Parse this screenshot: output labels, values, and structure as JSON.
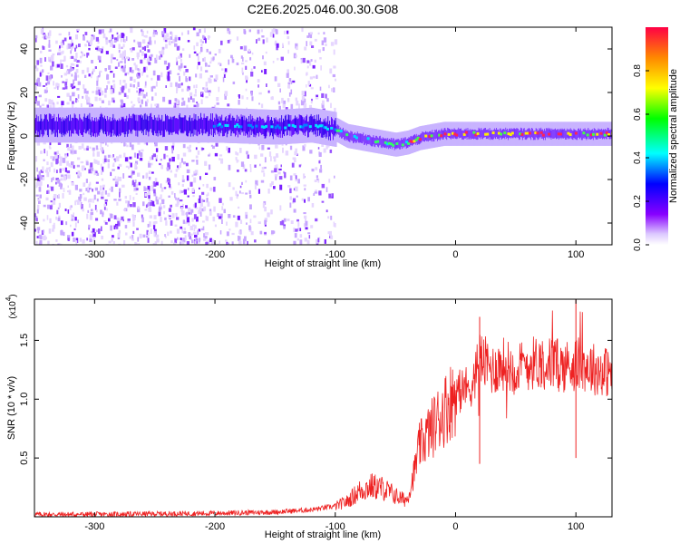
{
  "title": "C2E6.2025.046.00.30.G08",
  "colorbar": {
    "label": "Normalized spectral amplitude",
    "ticks": [
      "0.0",
      "0.2",
      "0.4",
      "0.6",
      "0.8"
    ],
    "colors": [
      "#ffffff",
      "#8800ff",
      "#0000ff",
      "#00ffff",
      "#00ff00",
      "#ffff00",
      "#ff8800",
      "#ff0000"
    ]
  },
  "chart_data": [
    {
      "type": "heatmap",
      "title": "",
      "xlabel": "Height of straight line (km)",
      "ylabel": "Frequency (Hz)",
      "xlim": [
        -350,
        130
      ],
      "ylim": [
        -50,
        50
      ],
      "xticks": [
        "-300",
        "-200",
        "-100",
        "0",
        "100"
      ],
      "yticks": [
        "-40",
        "-20",
        "0",
        "20",
        "40"
      ],
      "ridge": {
        "x": [
          -350,
          -300,
          -250,
          -200,
          -150,
          -120,
          -100,
          -90,
          -80,
          -70,
          -60,
          -50,
          -40,
          -30,
          -20,
          -10,
          0,
          50,
          100,
          130
        ],
        "freq": [
          5,
          5,
          5,
          5,
          4,
          5,
          3,
          0,
          -1,
          -2,
          -3,
          -4,
          -3,
          -1,
          0,
          1,
          1,
          1,
          1,
          1
        ]
      },
      "noise_extent_km": [
        -350,
        -100
      ]
    },
    {
      "type": "line",
      "title": "",
      "xlabel": "Height of straight line (km)",
      "ylabel": "SNR (10 * v/v)",
      "y_scale_label": "(x10",
      "y_scale_exp": "4",
      "xlim": [
        -350,
        130
      ],
      "ylim": [
        0,
        18500
      ],
      "xticks": [
        "-300",
        "-200",
        "-100",
        "0",
        "100"
      ],
      "yticks": [
        "0.5",
        "1.0",
        "1.5"
      ],
      "series": [
        {
          "color": "#ee2222",
          "x": [
            -350,
            -300,
            -250,
            -200,
            -150,
            -120,
            -100,
            -90,
            -80,
            -70,
            -60,
            -50,
            -45,
            -40,
            -35,
            -30,
            -20,
            -10,
            0,
            10,
            15,
            20,
            30,
            40,
            50,
            60,
            70,
            80,
            90,
            100,
            110,
            120,
            130
          ],
          "values": [
            200,
            200,
            250,
            300,
            400,
            600,
            900,
            1300,
            2200,
            2600,
            2400,
            1800,
            1500,
            1500,
            3500,
            6000,
            7500,
            9000,
            10500,
            11000,
            11500,
            13500,
            12500,
            13000,
            12500,
            13000,
            13200,
            13000,
            12800,
            13000,
            12800,
            12400,
            12300
          ]
        }
      ],
      "spikes": [
        {
          "x": 20,
          "values": 17000
        },
        {
          "x": 100,
          "values": 18500
        },
        {
          "x": 100,
          "values": 5000
        },
        {
          "x": 20,
          "values": 4500
        }
      ]
    }
  ]
}
